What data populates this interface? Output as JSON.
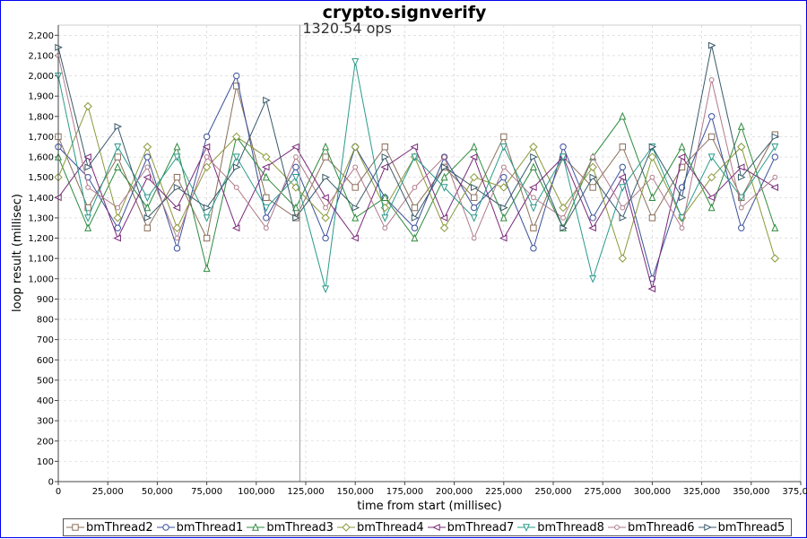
{
  "chart_data": {
    "type": "line",
    "title": "crypto.signverify",
    "xlabel": "time from start (millisec)",
    "ylabel": "loop result (millisec)",
    "xlim": [
      0,
      375000
    ],
    "ylim": [
      0,
      2250
    ],
    "x_ticks": [
      0,
      25000,
      50000,
      75000,
      100000,
      125000,
      150000,
      175000,
      200000,
      225000,
      250000,
      275000,
      300000,
      325000,
      350000,
      375000
    ],
    "x_tick_labels": [
      "0",
      "25,000",
      "50,000",
      "75,000",
      "100,000",
      "125,000",
      "150,000",
      "175,000",
      "200,000",
      "225,000",
      "250,000",
      "275,000",
      "300,000",
      "325,000",
      "350,000",
      "375,000"
    ],
    "y_ticks": [
      0,
      100,
      200,
      300,
      400,
      500,
      600,
      700,
      800,
      900,
      1000,
      1100,
      1200,
      1300,
      1400,
      1500,
      1600,
      1700,
      1800,
      1900,
      2000,
      2100,
      2200
    ],
    "y_tick_labels": [
      "0",
      "100",
      "200",
      "300",
      "400",
      "500",
      "600",
      "700",
      "800",
      "900",
      "1,000",
      "1,100",
      "1,200",
      "1,300",
      "1,400",
      "1,500",
      "1,600",
      "1,700",
      "1,800",
      "1,900",
      "2,000",
      "2,100",
      "2,200"
    ],
    "grid": true,
    "legend_position": "bottom",
    "annotation": {
      "text": "1320.54 ops",
      "x": 122000
    },
    "series": [
      {
        "name": "bmThread2",
        "marker": "square",
        "color": "#8b6f5a",
        "x": [
          0,
          15000,
          30000,
          45000,
          60000,
          75000,
          90000,
          105000,
          120000,
          135000,
          150000,
          165000,
          180000,
          195000,
          210000,
          225000,
          240000,
          255000,
          270000,
          285000,
          300000,
          315000,
          330000,
          345000,
          362000
        ],
        "values": [
          1700,
          1350,
          1600,
          1250,
          1500,
          1200,
          1950,
          1400,
          1300,
          1600,
          1450,
          1650,
          1350,
          1550,
          1400,
          1700,
          1250,
          1600,
          1450,
          1650,
          1300,
          1550,
          1700,
          1400,
          1710
        ]
      },
      {
        "name": "bmThread1",
        "marker": "circle",
        "color": "#3a4f9a",
        "x": [
          0,
          15000,
          30000,
          45000,
          60000,
          75000,
          90000,
          105000,
          120000,
          135000,
          150000,
          165000,
          180000,
          195000,
          210000,
          225000,
          240000,
          255000,
          270000,
          285000,
          300000,
          315000,
          330000,
          345000,
          362000
        ],
        "values": [
          1650,
          1500,
          1250,
          1600,
          1150,
          1700,
          2000,
          1300,
          1550,
          1200,
          1650,
          1400,
          1250,
          1600,
          1350,
          1500,
          1150,
          1650,
          1300,
          1550,
          1000,
          1450,
          1800,
          1250,
          1600
        ]
      },
      {
        "name": "bmThread3",
        "marker": "triangle-up",
        "color": "#2e8b3e",
        "x": [
          0,
          15000,
          30000,
          45000,
          60000,
          75000,
          90000,
          105000,
          120000,
          135000,
          150000,
          165000,
          180000,
          195000,
          210000,
          225000,
          240000,
          255000,
          270000,
          285000,
          300000,
          315000,
          330000,
          345000,
          362000
        ],
        "values": [
          1600,
          1250,
          1550,
          1350,
          1650,
          1050,
          1700,
          1500,
          1350,
          1650,
          1300,
          1400,
          1200,
          1500,
          1650,
          1300,
          1550,
          1250,
          1600,
          1800,
          1400,
          1650,
          1350,
          1750,
          1250
        ]
      },
      {
        "name": "bmThread4",
        "marker": "diamond",
        "color": "#8a9a3a",
        "x": [
          0,
          15000,
          30000,
          45000,
          60000,
          75000,
          90000,
          105000,
          120000,
          135000,
          150000,
          165000,
          180000,
          195000,
          210000,
          225000,
          240000,
          255000,
          270000,
          285000,
          300000,
          315000,
          330000,
          345000,
          362000
        ],
        "values": [
          1500,
          1850,
          1300,
          1650,
          1250,
          1550,
          1700,
          1600,
          1450,
          1300,
          1650,
          1350,
          1600,
          1250,
          1500,
          1450,
          1650,
          1350,
          1550,
          1100,
          1600,
          1300,
          1500,
          1650,
          1100
        ]
      },
      {
        "name": "bmThread7",
        "marker": "triangle-left",
        "color": "#7a2a7a",
        "x": [
          0,
          15000,
          30000,
          45000,
          60000,
          75000,
          90000,
          105000,
          120000,
          135000,
          150000,
          165000,
          180000,
          195000,
          210000,
          225000,
          240000,
          255000,
          270000,
          285000,
          300000,
          315000,
          330000,
          345000,
          362000
        ],
        "values": [
          1400,
          1600,
          1200,
          1500,
          1350,
          1650,
          1250,
          1550,
          1650,
          1400,
          1200,
          1550,
          1650,
          1300,
          1600,
          1200,
          1450,
          1600,
          1250,
          1500,
          950,
          1600,
          1400,
          1550,
          1450
        ]
      },
      {
        "name": "bmThread8",
        "marker": "triangle-down",
        "color": "#2a9a8a",
        "x": [
          0,
          15000,
          30000,
          45000,
          60000,
          75000,
          90000,
          105000,
          120000,
          135000,
          150000,
          165000,
          180000,
          195000,
          210000,
          225000,
          240000,
          255000,
          270000,
          285000,
          300000,
          315000,
          330000,
          345000,
          362000
        ],
        "values": [
          2000,
          1300,
          1650,
          1400,
          1600,
          1300,
          1600,
          1350,
          1500,
          950,
          2070,
          1300,
          1600,
          1450,
          1300,
          1650,
          1350,
          1600,
          1000,
          1450,
          1650,
          1300,
          1600,
          1400,
          1650
        ]
      },
      {
        "name": "bmThread6",
        "marker": "circle-small",
        "color": "#b07a8a",
        "x": [
          0,
          15000,
          30000,
          45000,
          60000,
          75000,
          90000,
          105000,
          120000,
          135000,
          150000,
          165000,
          180000,
          195000,
          210000,
          225000,
          240000,
          255000,
          270000,
          285000,
          300000,
          315000,
          330000,
          345000,
          362000
        ],
        "values": [
          2100,
          1450,
          1350,
          1550,
          1200,
          1600,
          1450,
          1250,
          1600,
          1350,
          1550,
          1250,
          1450,
          1600,
          1200,
          1550,
          1400,
          1300,
          1600,
          1350,
          1500,
          1250,
          1980,
          1350,
          1500
        ]
      },
      {
        "name": "bmThread5",
        "marker": "triangle-right",
        "color": "#3a5a6a",
        "x": [
          0,
          15000,
          30000,
          45000,
          60000,
          75000,
          90000,
          105000,
          120000,
          135000,
          150000,
          165000,
          180000,
          195000,
          210000,
          225000,
          240000,
          255000,
          270000,
          285000,
          300000,
          315000,
          330000,
          345000,
          362000
        ],
        "values": [
          2140,
          1550,
          1750,
          1300,
          1450,
          1350,
          1550,
          1880,
          1300,
          1500,
          1350,
          1600,
          1300,
          1550,
          1450,
          1350,
          1600,
          1250,
          1500,
          1300,
          1650,
          1400,
          2150,
          1500,
          1700
        ]
      }
    ]
  }
}
